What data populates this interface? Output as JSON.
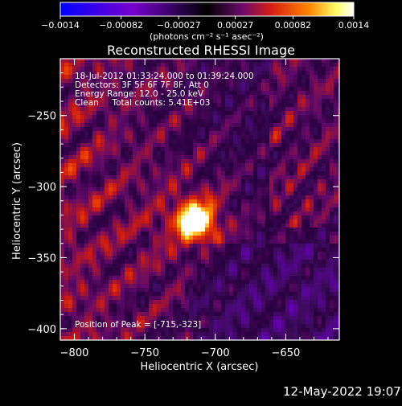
{
  "chart_data": {
    "type": "heatmap",
    "title": "Reconstructed RHESSI Image",
    "xlabel": "Heliocentric X (arcsec)",
    "ylabel": "Heliocentric Y (arcsec)",
    "xlim": [
      -810,
      -612
    ],
    "ylim": [
      -408,
      -210
    ],
    "xticks": [
      -800,
      -750,
      -700,
      -650
    ],
    "xtick_labels": [
      "−800",
      "−750",
      "−700",
      "−650"
    ],
    "yticks": [
      -250,
      -300,
      -350,
      -400
    ],
    "ytick_labels": [
      "−250",
      "−300",
      "−350",
      "−400"
    ],
    "grid": false,
    "annotations": [
      "18-Jul-2012 01:33:24.000 to 01:39:24.000",
      "Detectors: 3F 5F 6F 7F 8F, Att 0",
      "Energy Range: 12.0 - 25.0 keV",
      "Clean     Total counts: 5.41E+03"
    ],
    "peak_label": "Position of Peak = [-715,-323]",
    "peak": [
      -715,
      -323
    ],
    "colorbar": {
      "ticks": [
        -0.0014,
        -0.00082,
        -0.00027,
        0.00027,
        0.00082,
        0.0014
      ],
      "tick_labels": [
        "−0.0014",
        "−0.00082",
        "−0.00027",
        "0.00027",
        "0.00082",
        "0.0014"
      ],
      "units_label": "(photons cm⁻² s⁻¹ asec⁻²)",
      "range": [
        -0.0014,
        0.0014
      ],
      "colors": [
        "#0000ff",
        "#7700cc",
        "#000000",
        "#6a0a6a",
        "#d81d12",
        "#ff8800",
        "#ffff66",
        "#ffffff"
      ]
    }
  },
  "footer": {
    "timestamp": "12-May-2022 19:07"
  }
}
